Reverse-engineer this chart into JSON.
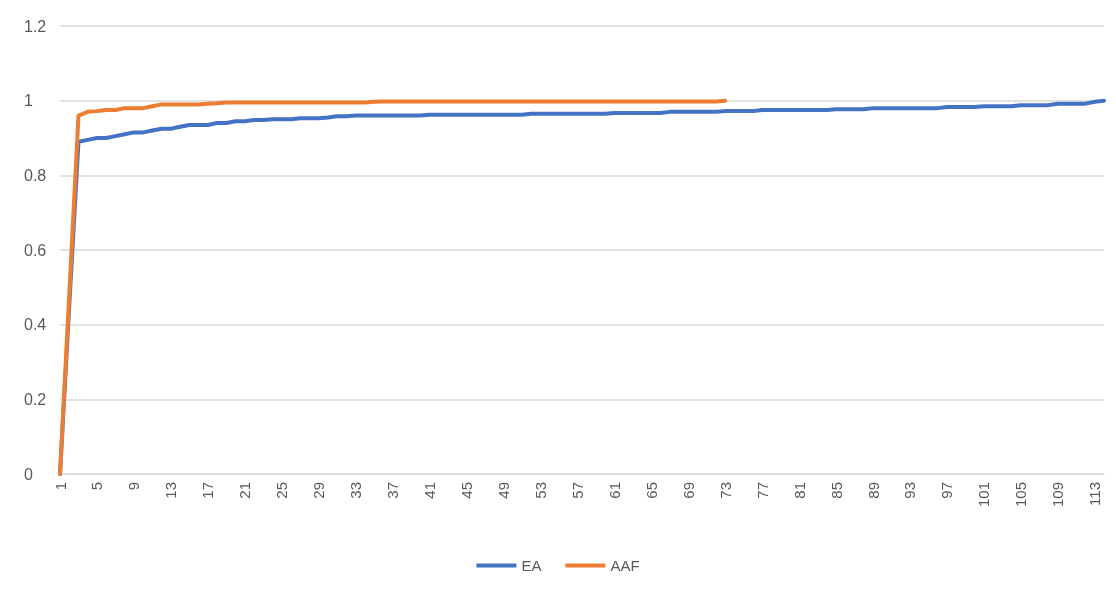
{
  "chart_data": {
    "type": "line",
    "categories": [
      "1",
      null,
      null,
      null,
      "5",
      null,
      null,
      null,
      "9",
      null,
      null,
      null,
      "13",
      null,
      null,
      null,
      "17",
      null,
      null,
      null,
      "21",
      null,
      null,
      null,
      "25",
      null,
      null,
      null,
      "29",
      null,
      null,
      null,
      "33",
      null,
      null,
      null,
      "37",
      null,
      null,
      null,
      "41",
      null,
      null,
      null,
      "45",
      null,
      null,
      null,
      "49",
      null,
      null,
      null,
      "53",
      null,
      null,
      null,
      "57",
      null,
      null,
      null,
      "61",
      null,
      null,
      null,
      "65",
      null,
      null,
      null,
      "69",
      null,
      null,
      null,
      "73",
      null,
      null,
      null,
      "77",
      null,
      null,
      null,
      "81",
      null,
      null,
      null,
      "85",
      null,
      null,
      null,
      "89",
      null,
      null,
      null,
      "93",
      null,
      null,
      null,
      "97",
      null,
      null,
      null,
      "101",
      null,
      null,
      null,
      "105",
      null,
      null,
      null,
      "109",
      null,
      null,
      null,
      "113",
      null
    ],
    "series": [
      {
        "name": "EA",
        "color": "#4472c4",
        "values": [
          0,
          0.45,
          0.89,
          0.895,
          0.9,
          0.9,
          0.905,
          0.91,
          0.915,
          0.915,
          0.92,
          0.925,
          0.925,
          0.93,
          0.935,
          0.935,
          0.935,
          0.94,
          0.94,
          0.945,
          0.945,
          0.948,
          0.948,
          0.95,
          0.95,
          0.95,
          0.953,
          0.953,
          0.953,
          0.955,
          0.958,
          0.958,
          0.96,
          0.96,
          0.96,
          0.96,
          0.96,
          0.96,
          0.96,
          0.96,
          0.962,
          0.962,
          0.962,
          0.962,
          0.962,
          0.962,
          0.962,
          0.962,
          0.962,
          0.962,
          0.962,
          0.965,
          0.965,
          0.965,
          0.965,
          0.965,
          0.965,
          0.965,
          0.965,
          0.965,
          0.967,
          0.967,
          0.967,
          0.967,
          0.967,
          0.967,
          0.97,
          0.97,
          0.97,
          0.97,
          0.97,
          0.97,
          0.972,
          0.972,
          0.972,
          0.972,
          0.975,
          0.975,
          0.975,
          0.975,
          0.975,
          0.975,
          0.975,
          0.975,
          0.977,
          0.977,
          0.977,
          0.977,
          0.98,
          0.98,
          0.98,
          0.98,
          0.98,
          0.98,
          0.98,
          0.98,
          0.983,
          0.983,
          0.983,
          0.983,
          0.985,
          0.985,
          0.985,
          0.985,
          0.988,
          0.988,
          0.988,
          0.988,
          0.992,
          0.992,
          0.992,
          0.992,
          0.997,
          1
        ]
      },
      {
        "name": "AAF",
        "color": "#ed7d31",
        "values": [
          0,
          0.48,
          0.96,
          0.97,
          0.972,
          0.975,
          0.975,
          0.98,
          0.98,
          0.98,
          0.985,
          0.99,
          0.99,
          0.99,
          0.99,
          0.99,
          0.992,
          0.993,
          0.995,
          0.995,
          0.995,
          0.995,
          0.995,
          0.995,
          0.995,
          0.995,
          0.995,
          0.995,
          0.995,
          0.995,
          0.995,
          0.995,
          0.995,
          0.995,
          0.997,
          0.998,
          0.998,
          0.998,
          0.998,
          0.998,
          0.998,
          0.998,
          0.998,
          0.998,
          0.998,
          0.998,
          0.998,
          0.998,
          0.998,
          0.998,
          0.998,
          0.998,
          0.998,
          0.998,
          0.998,
          0.998,
          0.998,
          0.998,
          0.998,
          0.998,
          0.998,
          0.998,
          0.998,
          0.998,
          0.998,
          0.998,
          0.998,
          0.998,
          0.998,
          0.998,
          0.998,
          0.998,
          1,
          null,
          null,
          null,
          null,
          null,
          null,
          null,
          null,
          null,
          null,
          null,
          null,
          null,
          null,
          null,
          null,
          null,
          null,
          null,
          null,
          null,
          null,
          null,
          null,
          null,
          null,
          null,
          null,
          null,
          null,
          null,
          null,
          null,
          null,
          null,
          null,
          null,
          null,
          null,
          null,
          null
        ]
      }
    ],
    "ylim": [
      0,
      1.2
    ],
    "yticks": [
      0,
      0.2,
      0.4,
      0.6,
      0.8,
      1,
      1.2
    ],
    "grid": "y",
    "legend": "bottom",
    "marker": "none",
    "line_style": "solid"
  }
}
